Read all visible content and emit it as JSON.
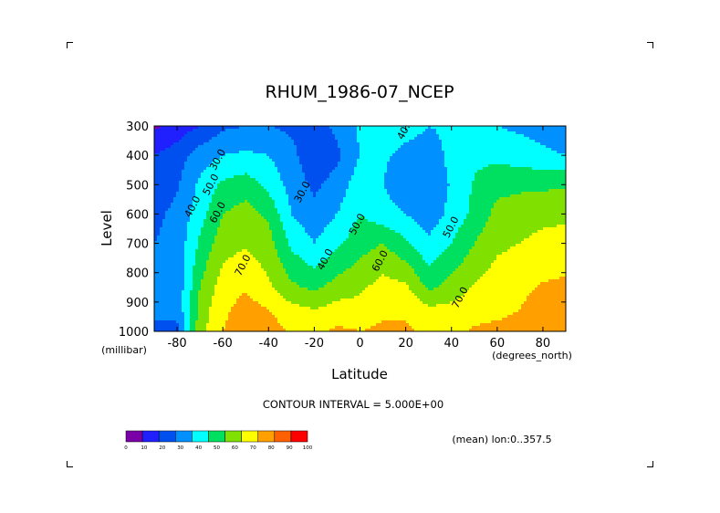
{
  "chart_data": {
    "type": "heatmap",
    "title": "RHUM_1986-07_NCEP",
    "xlabel": "Latitude",
    "x_units": "(degrees_north)",
    "ylabel": "Level",
    "y_units": "(millibar)",
    "xlim": [
      -90,
      90
    ],
    "ylim": [
      1000,
      300
    ],
    "x_ticks": [
      -80,
      -60,
      -40,
      -20,
      0,
      20,
      40,
      60,
      80
    ],
    "x_tick_labels": [
      "-80",
      "-60",
      "-40",
      "-20",
      "0",
      "20",
      "40",
      "60",
      "80"
    ],
    "y_ticks": [
      300,
      400,
      500,
      600,
      700,
      800,
      900,
      1000
    ],
    "y_tick_labels": [
      "300",
      "400",
      "500",
      "600",
      "700",
      "800",
      "900",
      "1000"
    ],
    "latitudes": [
      -90,
      -80,
      -70,
      -60,
      -50,
      -40,
      -30,
      -20,
      -10,
      0,
      10,
      20,
      30,
      40,
      50,
      60,
      70,
      80,
      90
    ],
    "levels": [
      1000,
      925,
      850,
      700,
      600,
      500,
      400,
      300
    ],
    "rhum": [
      [
        null,
        28,
        66,
        80,
        86,
        85,
        79,
        78,
        82,
        80,
        82,
        82,
        78,
        77,
        81,
        82,
        83,
        86,
        88
      ],
      [
        null,
        32,
        64,
        78,
        84,
        80,
        73,
        70,
        74,
        74,
        78,
        78,
        72,
        73,
        77,
        78,
        80,
        84,
        85
      ],
      [
        null,
        33,
        60,
        75,
        79,
        72,
        62,
        58,
        64,
        68,
        74,
        72,
        58,
        64,
        71,
        75,
        78,
        81,
        82
      ],
      [
        null,
        33,
        52,
        66,
        69,
        64,
        48,
        40,
        48,
        56,
        60,
        52,
        42,
        50,
        60,
        68,
        70,
        73,
        74
      ],
      [
        28,
        32,
        46,
        60,
        64,
        58,
        40,
        33,
        40,
        50,
        44,
        40,
        34,
        43,
        53,
        63,
        65,
        67,
        68
      ],
      [
        26,
        29,
        42,
        52,
        55,
        47,
        36,
        28,
        34,
        46,
        40,
        33,
        32,
        41,
        51,
        57,
        58,
        58,
        59
      ],
      [
        20,
        25,
        35,
        40,
        42,
        40,
        33,
        22,
        28,
        40,
        42,
        36,
        34,
        43,
        48,
        47,
        45,
        42,
        40
      ],
      [
        8,
        14,
        20,
        28,
        30,
        30,
        28,
        26,
        32,
        42,
        50,
        45,
        40,
        42,
        44,
        40,
        38,
        36,
        34
      ]
    ],
    "contour_interval_text": "CONTOUR INTERVAL = 5.000E+00",
    "contour_labels": [
      {
        "text": "40.0",
        "lat": 21,
        "lev": 315
      },
      {
        "text": "30.0",
        "lat": -61,
        "lev": 420
      },
      {
        "text": "30.0",
        "lat": -24,
        "lev": 530
      },
      {
        "text": "50.0",
        "lat": -64,
        "lev": 505
      },
      {
        "text": "40.0",
        "lat": -72,
        "lev": 580
      },
      {
        "text": "60.0",
        "lat": -61,
        "lev": 600
      },
      {
        "text": "50.0",
        "lat": 0,
        "lev": 640
      },
      {
        "text": "50.0",
        "lat": 41,
        "lev": 650
      },
      {
        "text": "40.0",
        "lat": -14,
        "lev": 760
      },
      {
        "text": "60.0",
        "lat": 10,
        "lev": 765
      },
      {
        "text": "70.0",
        "lat": -50,
        "lev": 780
      },
      {
        "text": "70.0",
        "lat": 45,
        "lev": 890
      }
    ],
    "annotation": "(mean) lon:0..357.5",
    "colorbar": {
      "ticks": [
        "0",
        "10",
        "20",
        "30",
        "40",
        "50",
        "60",
        "70",
        "80",
        "90",
        "100"
      ],
      "colors": [
        "#7a00a8",
        "#2020ff",
        "#0050f0",
        "#0090ff",
        "#00ffff",
        "#00e060",
        "#80e000",
        "#ffff00",
        "#ffa000",
        "#ff6000",
        "#ff0000"
      ]
    }
  }
}
